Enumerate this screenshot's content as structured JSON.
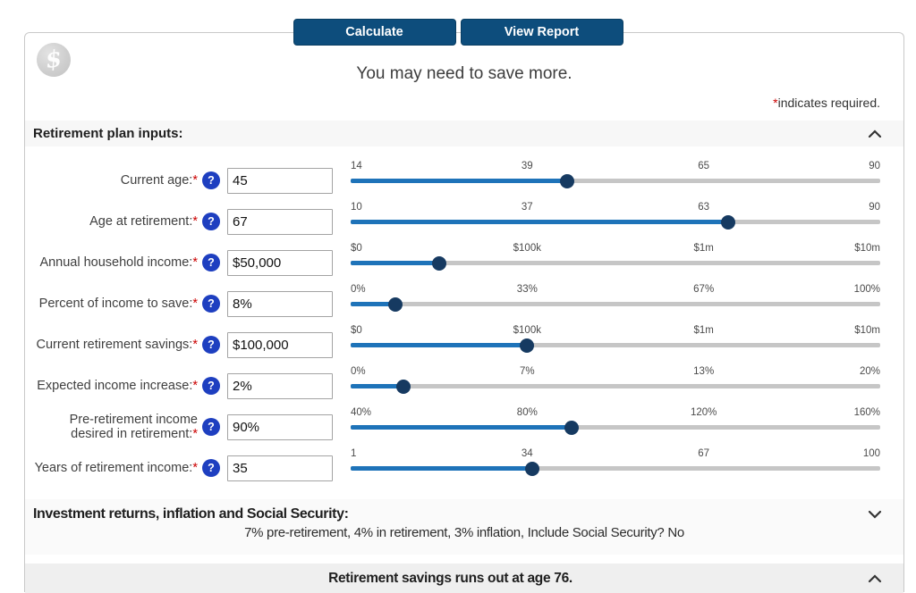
{
  "required_mark": "*",
  "help_glyph": "?",
  "logo_glyph": "$",
  "toolbar": {
    "calculate": "Calculate",
    "view_report": "View Report"
  },
  "header": {
    "message": "You may need to save more.",
    "required_note": "indicates required."
  },
  "sections": {
    "inputs_title": "Retirement plan inputs:",
    "assumptions_title": "Investment returns, inflation and Social Security:",
    "assumptions_summary": "7% pre-retirement, 4% in retirement, 3% inflation, Include Social Security? No",
    "result_title": "Retirement savings runs out at age 76."
  },
  "rows": [
    {
      "label": "Current age:",
      "value": "45",
      "ticks": [
        "14",
        "39",
        "65",
        "90"
      ],
      "fill_pct": 40.8
    },
    {
      "label": "Age at retirement:",
      "value": "67",
      "ticks": [
        "10",
        "37",
        "63",
        "90"
      ],
      "fill_pct": 71.3
    },
    {
      "label": "Annual household income:",
      "value": "$50,000",
      "ticks": [
        "$0",
        "$100k",
        "$1m",
        "$10m"
      ],
      "fill_pct": 16.7
    },
    {
      "label": "Percent of income to save:",
      "value": "8%",
      "ticks": [
        "0%",
        "33%",
        "67%",
        "100%"
      ],
      "fill_pct": 8.5
    },
    {
      "label": "Current retirement savings:",
      "value": "$100,000",
      "ticks": [
        "$0",
        "$100k",
        "$1m",
        "$10m"
      ],
      "fill_pct": 33.3
    },
    {
      "label": "Expected income increase:",
      "value": "2%",
      "ticks": [
        "0%",
        "7%",
        "13%",
        "20%"
      ],
      "fill_pct": 10
    },
    {
      "label": "Pre-retirement income desired in retirement:",
      "value": "90%",
      "ticks": [
        "40%",
        "80%",
        "120%",
        "160%"
      ],
      "fill_pct": 41.7
    },
    {
      "label": "Years of retirement income:",
      "value": "35",
      "ticks": [
        "1",
        "34",
        "67",
        "100"
      ],
      "fill_pct": 34.3
    }
  ],
  "colors": {
    "button": "#0d4d7c",
    "slider_fill": "#1e73b9",
    "slider_rail": "#c6c6c6",
    "slider_thumb": "#163a61",
    "help_icon": "#1e3fc0",
    "required": "#cc0000"
  }
}
